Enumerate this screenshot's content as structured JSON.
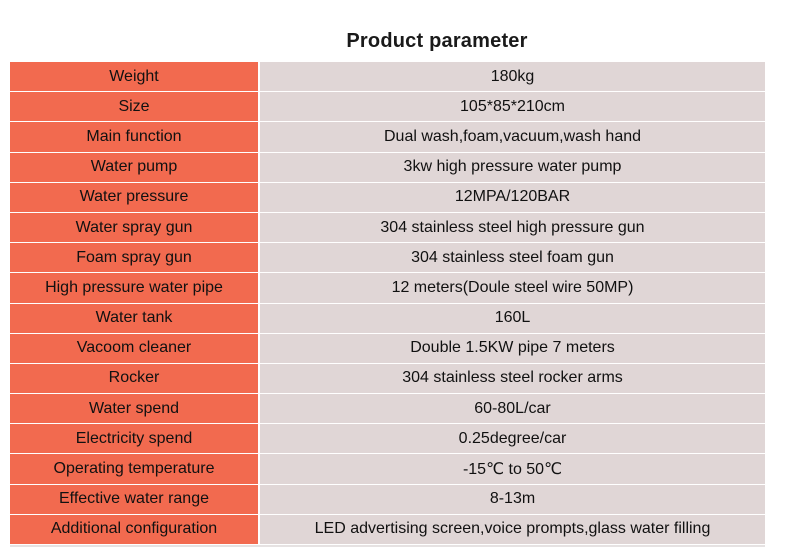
{
  "title": "Product  parameter",
  "rows": [
    {
      "label": "Weight",
      "value": "180kg"
    },
    {
      "label": "Size",
      "value": "105*85*210cm"
    },
    {
      "label": "Main function",
      "value": "Dual wash,foam,vacuum,wash hand"
    },
    {
      "label": "Water pump",
      "value": "3kw high pressure water pump"
    },
    {
      "label": "Water pressure",
      "value": "12MPA/120BAR"
    },
    {
      "label": "Water spray gun",
      "value": "304 stainless steel high pressure gun"
    },
    {
      "label": "Foam spray gun",
      "value": "304 stainless steel foam gun"
    },
    {
      "label": "High pressure water pipe",
      "value": "12 meters(Doule steel wire 50MP)"
    },
    {
      "label": "Water tank",
      "value": "160L"
    },
    {
      "label": "Vacoom cleaner",
      "value": "Double 1.5KW pipe 7 meters"
    },
    {
      "label": "Rocker",
      "value": "304 stainless steel rocker arms"
    },
    {
      "label": "Water spend",
      "value": "60-80L/car"
    },
    {
      "label": "Electricity spend",
      "value": "0.25degree/car"
    },
    {
      "label": "Operating temperature",
      "value": "-15℃ to 50℃"
    },
    {
      "label": "Effective water range",
      "value": "8-13m"
    },
    {
      "label": "Additional configuration",
      "value": "LED advertising screen,voice prompts,glass water filling"
    }
  ]
}
